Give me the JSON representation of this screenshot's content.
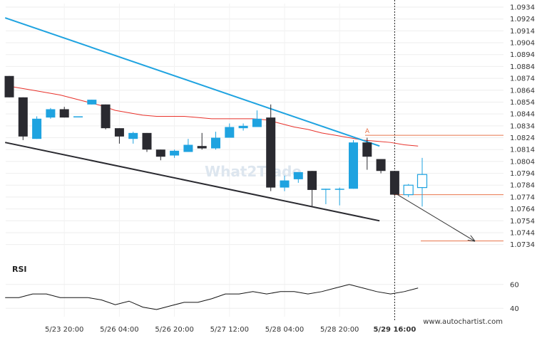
{
  "watermark": "What2Trade",
  "footer": {
    "url": "www.autochartist.com"
  },
  "colors": {
    "bull": "#1fa3e0",
    "bear": "#2a2a30",
    "upper_line": "#1fa3e0",
    "lower_line": "#2a2a30",
    "ma_line": "#e8312a",
    "level_line": "#e8734a",
    "projection": "#333333",
    "rsi_line": "#111111"
  },
  "chart_data": {
    "type": "candlestick",
    "price_axis": {
      "labels": [
        "1.0934",
        "1.0924",
        "1.0914",
        "1.0904",
        "1.0894",
        "1.0884",
        "1.0874",
        "1.0864",
        "1.0854",
        "1.0844",
        "1.0834",
        "1.0824",
        "1.0814",
        "1.0804",
        "1.0794",
        "1.0784",
        "1.0774",
        "1.0764",
        "1.0754",
        "1.0744",
        "1.0734"
      ],
      "ylim": [
        1.0729,
        1.0937
      ]
    },
    "time_axis": {
      "labels": [
        "5/23 20:00",
        "5/26 04:00",
        "5/26 20:00",
        "5/27 12:00",
        "5/28 04:00",
        "5/28 20:00",
        "5/29 16:00"
      ],
      "label_at_index": [
        4,
        8,
        12,
        16,
        20,
        24,
        28
      ],
      "highlighted_label": "5/29 16:00"
    },
    "candles": [
      {
        "o": 1.0876,
        "h": 1.0876,
        "l": 1.0858,
        "c": 1.0858
      },
      {
        "o": 1.0858,
        "h": 1.0858,
        "l": 1.0822,
        "c": 1.0825
      },
      {
        "o": 1.0823,
        "h": 1.0842,
        "l": 1.0823,
        "c": 1.084
      },
      {
        "o": 1.0841,
        "h": 1.0849,
        "l": 1.084,
        "c": 1.0848
      },
      {
        "o": 1.0848,
        "h": 1.085,
        "l": 1.0841,
        "c": 1.0841
      },
      {
        "o": 1.0842,
        "h": 1.0842,
        "l": 1.0842,
        "c": 1.0842
      },
      {
        "o": 1.0852,
        "h": 1.0856,
        "l": 1.0852,
        "c": 1.0856
      },
      {
        "o": 1.0852,
        "h": 1.0852,
        "l": 1.0831,
        "c": 1.0832
      },
      {
        "o": 1.0832,
        "h": 1.0832,
        "l": 1.0819,
        "c": 1.0825
      },
      {
        "o": 1.0823,
        "h": 1.0829,
        "l": 1.0819,
        "c": 1.0828
      },
      {
        "o": 1.0828,
        "h": 1.0828,
        "l": 1.0812,
        "c": 1.0814
      },
      {
        "o": 1.0814,
        "h": 1.0814,
        "l": 1.0805,
        "c": 1.0808
      },
      {
        "o": 1.0809,
        "h": 1.0814,
        "l": 1.0807,
        "c": 1.0813
      },
      {
        "o": 1.0812,
        "h": 1.0823,
        "l": 1.0812,
        "c": 1.0818
      },
      {
        "o": 1.0817,
        "h": 1.0828,
        "l": 1.0814,
        "c": 1.0815
      },
      {
        "o": 1.0815,
        "h": 1.0829,
        "l": 1.0814,
        "c": 1.0824
      },
      {
        "o": 1.0824,
        "h": 1.0836,
        "l": 1.0824,
        "c": 1.0833
      },
      {
        "o": 1.0832,
        "h": 1.0836,
        "l": 1.083,
        "c": 1.0834
      },
      {
        "o": 1.0833,
        "h": 1.0847,
        "l": 1.0833,
        "c": 1.084
      },
      {
        "o": 1.0841,
        "h": 1.0852,
        "l": 1.0779,
        "c": 1.0782
      },
      {
        "o": 1.0782,
        "h": 1.0792,
        "l": 1.0779,
        "c": 1.0788
      },
      {
        "o": 1.0789,
        "h": 1.0794,
        "l": 1.0786,
        "c": 1.0795
      },
      {
        "o": 1.0796,
        "h": 1.0796,
        "l": 1.0766,
        "c": 1.078
      },
      {
        "o": 1.0781,
        "h": 1.0781,
        "l": 1.0768,
        "c": 1.0781
      },
      {
        "o": 1.0781,
        "h": 1.0782,
        "l": 1.0767,
        "c": 1.0781
      },
      {
        "o": 1.0781,
        "h": 1.0822,
        "l": 1.0781,
        "c": 1.082
      },
      {
        "o": 1.082,
        "h": 1.0824,
        "l": 1.0797,
        "c": 1.0808
      },
      {
        "o": 1.0806,
        "h": 1.0806,
        "l": 1.0794,
        "c": 1.0796
      },
      {
        "o": 1.0796,
        "h": 1.0796,
        "l": 1.0775,
        "c": 1.0776
      },
      {
        "o": 1.0776,
        "h": 1.0785,
        "l": 1.0774,
        "c": 1.0784
      },
      {
        "o": 1.0782,
        "h": 1.0807,
        "l": 1.0766,
        "c": 1.0793
      }
    ],
    "upper_trendline": {
      "from": {
        "i": -0.3,
        "price": 1.0925
      },
      "to": {
        "i": 26.9,
        "price": 1.0817
      }
    },
    "lower_trendline": {
      "from": {
        "i": -0.3,
        "price": 1.082
      },
      "to": {
        "i": 26.9,
        "price": 1.0754
      }
    },
    "moving_average": [
      1.0868,
      1.0866,
      1.0864,
      1.0862,
      1.086,
      1.0857,
      1.0854,
      1.0851,
      1.0847,
      1.0845,
      1.0843,
      1.0842,
      1.0842,
      1.0842,
      1.0841,
      1.084,
      1.084,
      1.084,
      1.084,
      1.0839,
      1.0836,
      1.0833,
      1.0831,
      1.0828,
      1.0826,
      1.0824,
      1.0822,
      1.0821,
      1.082,
      1.0818,
      1.0817
    ],
    "resistance_level": {
      "price": 1.0826,
      "label": "A"
    },
    "support_level": 1.0776,
    "target_level": 1.0737,
    "projection": {
      "from": {
        "i": 28.0,
        "price": 1.0776
      },
      "to": {
        "i": 33.8,
        "price": 1.0737
      }
    },
    "current_time_index": 28,
    "rsi": {
      "title": "RSI",
      "labels": [
        "60",
        "40"
      ],
      "ylim": [
        33,
        70
      ],
      "values": [
        49,
        49,
        52,
        52,
        49,
        49,
        49,
        47,
        43,
        46,
        41,
        39,
        42,
        45,
        45,
        48,
        52,
        52,
        54,
        52,
        54,
        54,
        52,
        54,
        57,
        60,
        57,
        54,
        52,
        54,
        57
      ]
    }
  }
}
